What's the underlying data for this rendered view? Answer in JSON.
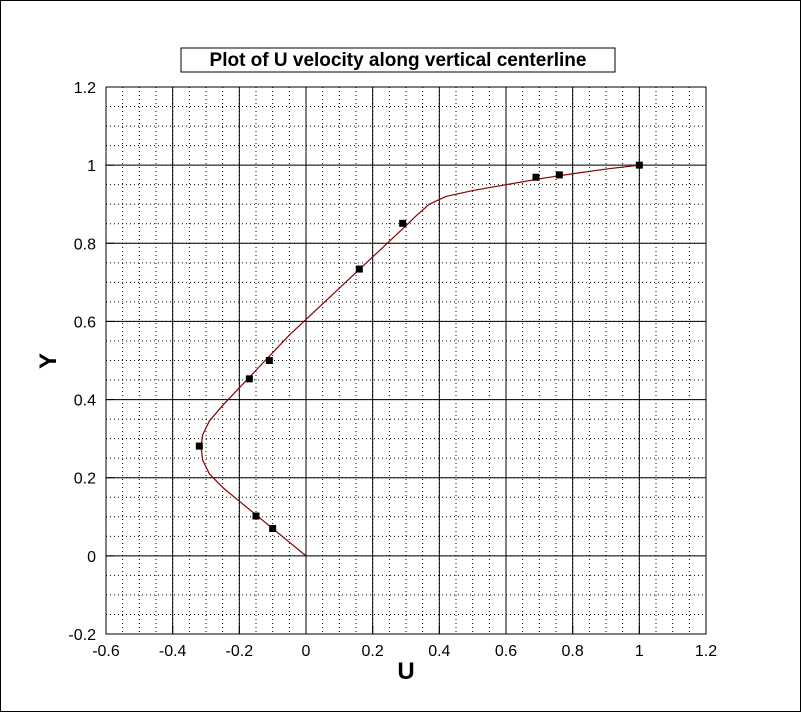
{
  "chart_data": {
    "type": "line",
    "title": "Plot of U velocity along vertical centerline",
    "xlabel": "U",
    "ylabel": "Y",
    "xlim": [
      -0.6,
      1.2
    ],
    "ylim": [
      -0.2,
      1.2
    ],
    "x_ticks": [
      -0.6,
      -0.4,
      -0.2,
      0,
      0.2,
      0.4,
      0.6,
      0.8,
      1,
      1.2
    ],
    "y_ticks": [
      -0.2,
      0,
      0.2,
      0.4,
      0.6,
      0.8,
      1,
      1.2
    ],
    "x_tick_labels": [
      "-0.6",
      "-0.4",
      "-0.2",
      "0",
      "0.2",
      "0.4",
      "0.6",
      "0.8",
      "1",
      "1.2"
    ],
    "y_tick_labels": [
      "-0.2",
      "0",
      "0.2",
      "0.4",
      "0.6",
      "0.8",
      "1",
      "1.2"
    ],
    "grid": true,
    "minor_grid": true,
    "series": [
      {
        "kind": "line",
        "color": "#8b0000",
        "points": [
          [
            0,
            0
          ],
          [
            -0.05,
            0.035
          ],
          [
            -0.1,
            0.07
          ],
          [
            -0.15,
            0.105
          ],
          [
            -0.2,
            0.14
          ],
          [
            -0.25,
            0.175
          ],
          [
            -0.29,
            0.21
          ],
          [
            -0.31,
            0.245
          ],
          [
            -0.315,
            0.28
          ],
          [
            -0.31,
            0.31
          ],
          [
            -0.29,
            0.345
          ],
          [
            -0.25,
            0.385
          ],
          [
            -0.2,
            0.43
          ],
          [
            -0.15,
            0.475
          ],
          [
            -0.1,
            0.52
          ],
          [
            -0.05,
            0.565
          ],
          [
            0,
            0.605
          ],
          [
            0.05,
            0.645
          ],
          [
            0.1,
            0.685
          ],
          [
            0.15,
            0.725
          ],
          [
            0.2,
            0.765
          ],
          [
            0.25,
            0.805
          ],
          [
            0.3,
            0.845
          ],
          [
            0.33,
            0.87
          ],
          [
            0.37,
            0.9
          ],
          [
            0.42,
            0.92
          ],
          [
            0.5,
            0.935
          ],
          [
            0.6,
            0.95
          ],
          [
            0.7,
            0.965
          ],
          [
            0.8,
            0.978
          ],
          [
            0.9,
            0.99
          ],
          [
            1,
            1
          ]
        ]
      },
      {
        "kind": "scatter",
        "color": "#000000",
        "points": [
          [
            1,
            1
          ],
          [
            0.76,
            0.975
          ],
          [
            0.69,
            0.969
          ],
          [
            0.29,
            0.851
          ],
          [
            0.16,
            0.734
          ],
          [
            -0.11,
            0.5
          ],
          [
            -0.17,
            0.453
          ],
          [
            -0.32,
            0.281
          ],
          [
            -0.15,
            0.102
          ],
          [
            -0.1,
            0.07
          ]
        ]
      }
    ]
  }
}
